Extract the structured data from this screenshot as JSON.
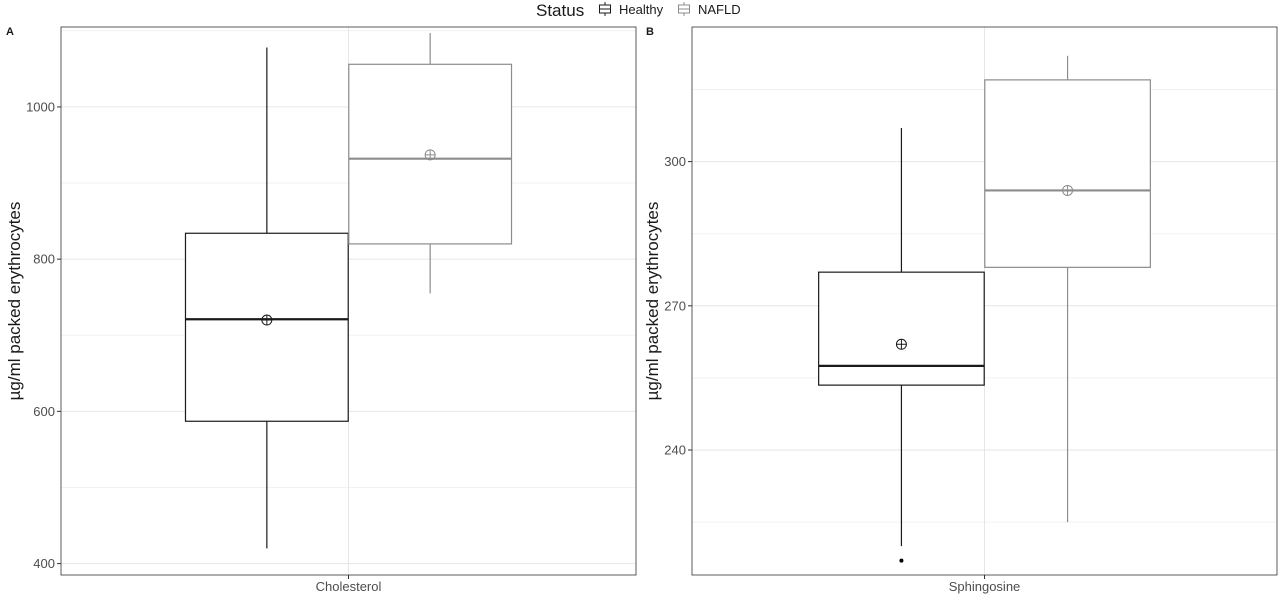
{
  "legend": {
    "title": "Status",
    "items": [
      {
        "label": "Healthy",
        "color": "#1a1a1a"
      },
      {
        "label": "NAFLD",
        "color": "#8c8c8c"
      }
    ]
  },
  "chart_data": [
    {
      "type": "box",
      "panel": "A",
      "categories": [
        "Cholesterol"
      ],
      "ylabel": "µg/ml packed erythrocytes",
      "ylim": [
        385,
        1105
      ],
      "yticks": [
        400,
        600,
        800,
        1000
      ],
      "grid": true,
      "legend_position": "top",
      "series": [
        {
          "name": "Healthy",
          "color": "#1a1a1a",
          "whisker_low": 420,
          "q1": 587,
          "median": 721,
          "q3": 834,
          "whisker_high": 1078,
          "mean": 720,
          "outliers": []
        },
        {
          "name": "NAFLD",
          "color": "#8c8c8c",
          "whisker_low": 755,
          "q1": 820,
          "median": 932,
          "q3": 1056,
          "whisker_high": 1097,
          "mean": 937,
          "outliers": []
        }
      ]
    },
    {
      "type": "box",
      "panel": "B",
      "categories": [
        "Sphingosine"
      ],
      "ylabel": "µg/ml packed erythrocytes",
      "ylim": [
        214,
        328
      ],
      "yticks": [
        240,
        270,
        300
      ],
      "grid": true,
      "legend_position": "top",
      "series": [
        {
          "name": "Healthy",
          "color": "#1a1a1a",
          "whisker_low": 220,
          "q1": 253.5,
          "median": 257.5,
          "q3": 277,
          "whisker_high": 307,
          "mean": 262,
          "outliers": [
            217
          ]
        },
        {
          "name": "NAFLD",
          "color": "#8c8c8c",
          "whisker_low": 225,
          "q1": 278,
          "median": 294,
          "q3": 317,
          "whisker_high": 322,
          "mean": 294,
          "outliers": []
        }
      ]
    }
  ]
}
